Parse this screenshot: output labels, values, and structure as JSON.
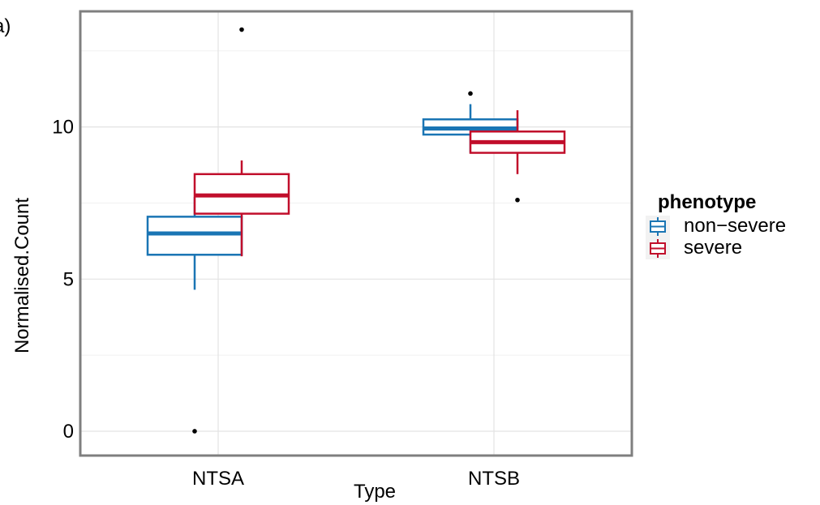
{
  "panel_label": "a)",
  "chart_data": {
    "type": "box",
    "title": "",
    "xlabel": "Type",
    "ylabel": "Normalised.Count",
    "ylim": [
      -0.8,
      13.8
    ],
    "yticks": [
      0,
      5,
      10
    ],
    "ytick_labels": [
      "0",
      "5",
      "10"
    ],
    "grid": true,
    "categories": [
      "NTSA",
      "NTSB"
    ],
    "legend": {
      "title": "phenotype",
      "placement": "right",
      "entries": [
        "non−severe",
        "severe"
      ]
    },
    "series": [
      {
        "name": "non−severe",
        "color": "#1a75b4",
        "boxes": [
          {
            "category": "NTSA",
            "whisker_low": 4.65,
            "q1": 5.8,
            "median": 6.5,
            "q3": 7.05,
            "whisker_high": 7.7,
            "outliers": [
              0.0
            ]
          },
          {
            "category": "NTSB",
            "whisker_low": 9.15,
            "q1": 9.75,
            "median": 9.95,
            "q3": 10.25,
            "whisker_high": 10.75,
            "outliers": [
              11.1
            ]
          }
        ]
      },
      {
        "name": "severe",
        "color": "#c10e2b",
        "boxes": [
          {
            "category": "NTSA",
            "whisker_low": 5.75,
            "q1": 7.15,
            "median": 7.75,
            "q3": 8.45,
            "whisker_high": 8.9,
            "outliers": [
              13.2
            ]
          },
          {
            "category": "NTSB",
            "whisker_low": 8.45,
            "q1": 9.15,
            "median": 9.5,
            "q3": 9.85,
            "whisker_high": 10.55,
            "outliers": [
              7.6
            ]
          }
        ]
      }
    ]
  }
}
